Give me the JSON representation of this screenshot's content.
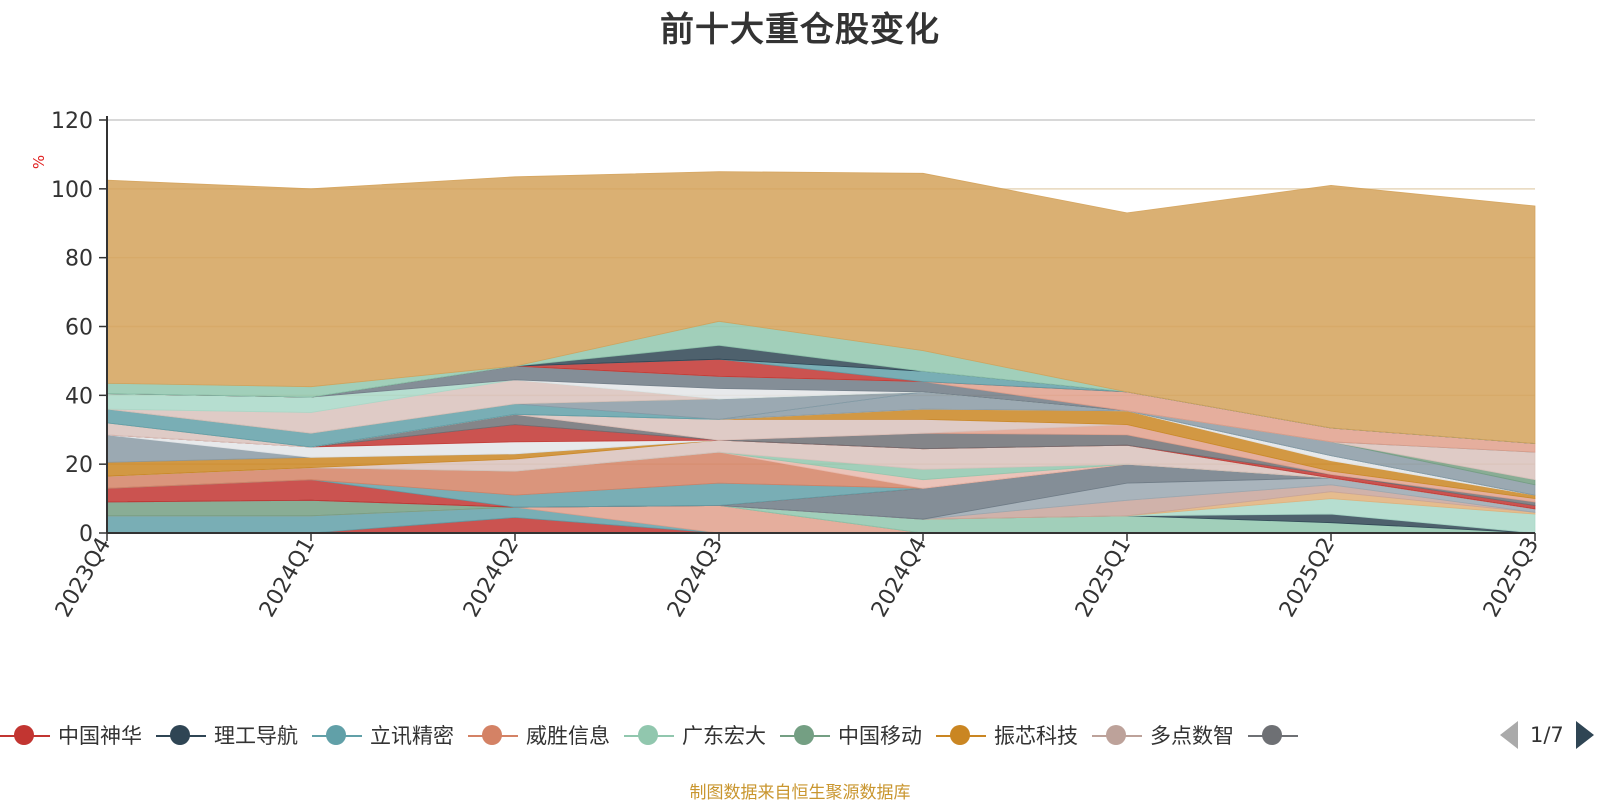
{
  "title": "前十大重仓股变化",
  "source_note": "制图数据来自恒生聚源数据库",
  "pager": {
    "current": "1/7"
  },
  "legend_items": [
    {
      "name": "中国神华",
      "color": "#c23531"
    },
    {
      "name": "理工导航",
      "color": "#2f4554"
    },
    {
      "name": "立讯精密",
      "color": "#61a0a8"
    },
    {
      "name": "威胜信息",
      "color": "#d48265"
    },
    {
      "name": "广东宏大",
      "color": "#91c7ae"
    },
    {
      "name": "中国移动",
      "color": "#749f83"
    },
    {
      "name": "振芯科技",
      "color": "#ca8622"
    },
    {
      "name": "多点数智",
      "color": "#bda29a"
    },
    {
      "name": "",
      "color": "#6e7074"
    }
  ],
  "chart_data": {
    "type": "area",
    "stacked": true,
    "title": "前十大重仓股变化",
    "ylabel": "%",
    "ylim": [
      0,
      120
    ],
    "yticks": [
      0,
      20,
      40,
      60,
      80,
      100,
      120
    ],
    "grid": true,
    "categories": [
      "2023Q4",
      "2024Q1",
      "2024Q2",
      "2024Q3",
      "2024Q4",
      "2025Q1",
      "2025Q2",
      "2025Q3"
    ],
    "series": [
      {
        "name": "中国神华",
        "color": "#c23531",
        "values": [
          0,
          0,
          4.5,
          0,
          0,
          0,
          0,
          0
        ]
      },
      {
        "name": "",
        "color": "#61a0a8",
        "values": [
          5,
          5,
          3,
          0,
          0,
          0,
          0,
          0
        ]
      },
      {
        "name": "",
        "color": "#e0a08c",
        "values": [
          0,
          0,
          0,
          8,
          0,
          0,
          0,
          0
        ]
      },
      {
        "name": "",
        "color": "#749f83",
        "values": [
          4,
          4.5,
          0,
          0,
          0,
          0,
          0,
          0
        ]
      },
      {
        "name": "",
        "color": "#91c7ae",
        "values": [
          0,
          0,
          0,
          0,
          4,
          5,
          3,
          0
        ]
      },
      {
        "name": "理工导航",
        "color": "#2f4554",
        "values": [
          0,
          0,
          0,
          0,
          0,
          0,
          2.5,
          0
        ]
      },
      {
        "name": "",
        "color": "#a9d8c8",
        "values": [
          0,
          0,
          0,
          0,
          0,
          0,
          4.5,
          5.5
        ]
      },
      {
        "name": "",
        "color": "#e1b07a",
        "values": [
          0,
          0,
          0,
          0,
          0,
          0,
          2,
          0.5
        ]
      },
      {
        "name": "",
        "color": "#c8a59b",
        "values": [
          0,
          0,
          0,
          0,
          0,
          4.5,
          2,
          0
        ]
      },
      {
        "name": "",
        "color": "#9aa7b0",
        "values": [
          0,
          0,
          0,
          0,
          0,
          5,
          2,
          1
        ]
      },
      {
        "name": "",
        "color": "#6e7a85",
        "values": [
          0,
          0,
          0,
          0,
          9,
          5.5,
          0,
          0
        ]
      },
      {
        "name": "",
        "color": "#c23531",
        "values": [
          4,
          6,
          0,
          0,
          0,
          0,
          0,
          0
        ]
      },
      {
        "name": "",
        "color": "#61a0a8",
        "values": [
          0,
          0,
          3.5,
          6.5,
          0,
          0,
          0,
          0
        ]
      },
      {
        "name": "",
        "color": "#d48265",
        "values": [
          3.5,
          3.5,
          7,
          9,
          0,
          0,
          0,
          0
        ]
      },
      {
        "name": "",
        "color": "#e8b9ad",
        "values": [
          0,
          0,
          0,
          0,
          2.5,
          0,
          0,
          0
        ]
      },
      {
        "name": "",
        "color": "#91c7ae",
        "values": [
          0,
          0,
          0,
          0,
          3,
          0,
          0,
          0
        ]
      },
      {
        "name": "",
        "color": "#d9c2bc",
        "values": [
          0,
          0,
          3.5,
          3.5,
          6,
          5.5,
          0,
          0
        ]
      },
      {
        "name": "",
        "color": "#ca8622",
        "values": [
          4,
          3,
          1.5,
          0,
          0,
          0,
          0,
          0
        ]
      },
      {
        "name": "",
        "color": "#8a9aa5",
        "values": [
          8,
          0,
          0,
          0,
          0,
          0,
          0,
          0
        ]
      },
      {
        "name": "",
        "color": "#e3e5e8",
        "values": [
          0,
          3,
          3.5,
          0,
          0,
          0,
          0,
          0
        ]
      },
      {
        "name": "",
        "color": "#c23531",
        "values": [
          0,
          0,
          5,
          0,
          0,
          0,
          1,
          1
        ]
      },
      {
        "name": "",
        "color": "#6e7074",
        "values": [
          0,
          0,
          3,
          0,
          4.5,
          3,
          0,
          1
        ]
      },
      {
        "name": "",
        "color": "#e0a08c",
        "values": [
          0,
          0,
          0,
          0,
          0,
          3,
          1,
          1
        ]
      },
      {
        "name": "",
        "color": "#d9c2bc",
        "values": [
          3.5,
          0,
          0,
          6,
          4,
          0,
          0,
          0
        ]
      },
      {
        "name": "",
        "color": "#ca8622",
        "values": [
          0,
          0,
          0,
          0,
          3,
          4,
          3,
          1
        ]
      },
      {
        "name": "",
        "color": "#e3e5e8",
        "values": [
          0,
          0,
          0,
          0,
          0,
          0,
          1.5,
          0
        ]
      },
      {
        "name": "",
        "color": "#8a9aa5",
        "values": [
          0,
          0,
          0,
          0,
          5,
          0,
          0,
          0
        ]
      },
      {
        "name": "",
        "color": "#61a0a8",
        "values": [
          4,
          4,
          3,
          0,
          0,
          0,
          0,
          0
        ]
      },
      {
        "name": "",
        "color": "#8a9aa5",
        "values": [
          0,
          0,
          0,
          6,
          0,
          0,
          4,
          3
        ]
      },
      {
        "name": "",
        "color": "#749f83",
        "values": [
          0,
          0,
          0,
          0,
          0,
          0,
          0,
          1.5
        ]
      },
      {
        "name": "",
        "color": "#d9c2bc",
        "values": [
          0,
          6,
          7,
          0,
          0,
          0,
          0,
          8
        ]
      },
      {
        "name": "",
        "color": "#a9d8c8",
        "values": [
          4.5,
          4.5,
          0,
          0,
          0,
          0,
          0,
          0
        ]
      },
      {
        "name": "",
        "color": "#e3e5e8",
        "values": [
          0,
          0,
          0,
          3,
          0,
          0,
          0,
          0
        ]
      },
      {
        "name": "",
        "color": "#6e7a85",
        "values": [
          0,
          0,
          4,
          3.5,
          3,
          0,
          0,
          0
        ]
      },
      {
        "name": "",
        "color": "#e0a08c",
        "values": [
          0,
          0,
          0,
          0,
          0,
          5.5,
          4,
          2.5
        ]
      },
      {
        "name": "",
        "color": "#c23531",
        "values": [
          0,
          0,
          0,
          5,
          0,
          0,
          0,
          0
        ]
      },
      {
        "name": "",
        "color": "#61a0a8",
        "values": [
          0,
          0,
          0,
          0,
          3,
          0,
          0,
          0
        ]
      },
      {
        "name": "",
        "color": "#2f4554",
        "values": [
          0,
          0,
          0,
          4,
          0,
          0,
          0,
          0
        ]
      },
      {
        "name": "",
        "color": "#91c7ae",
        "values": [
          3,
          3,
          0,
          7,
          6,
          0,
          0,
          0
        ]
      },
      {
        "name": "",
        "color": "#d4a25a",
        "values": [
          59,
          57.5,
          55,
          43.5,
          51.5,
          52,
          70.5,
          69
        ]
      }
    ]
  }
}
